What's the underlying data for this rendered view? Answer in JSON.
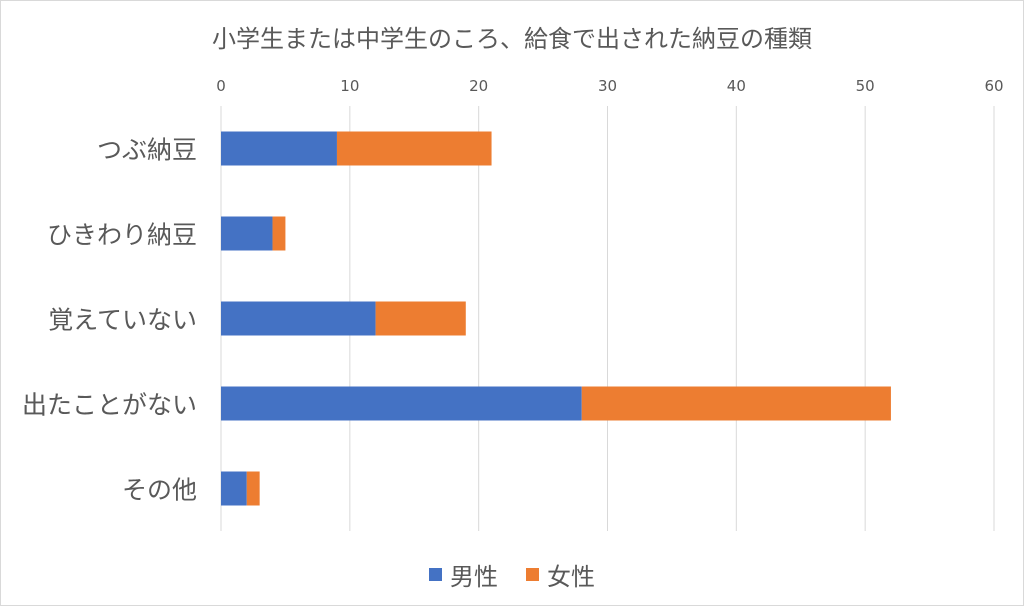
{
  "chart_data": {
    "type": "bar",
    "orientation": "horizontal",
    "stacked": true,
    "title": "小学生または中学生のころ、給食で出された納豆の種類",
    "categories": [
      "つぶ納豆",
      "ひきわり納豆",
      "覚えていない",
      "出たことがない",
      "その他"
    ],
    "series": [
      {
        "name": "男性",
        "color": "#4472C4",
        "values": [
          9,
          4,
          12,
          28,
          2
        ]
      },
      {
        "name": "女性",
        "color": "#ED7D31",
        "values": [
          12,
          1,
          7,
          24,
          1
        ]
      }
    ],
    "xlim": [
      0,
      60
    ],
    "xticks": [
      0,
      10,
      20,
      30,
      40,
      50,
      60
    ],
    "grid": true,
    "legend_position": "bottom"
  }
}
